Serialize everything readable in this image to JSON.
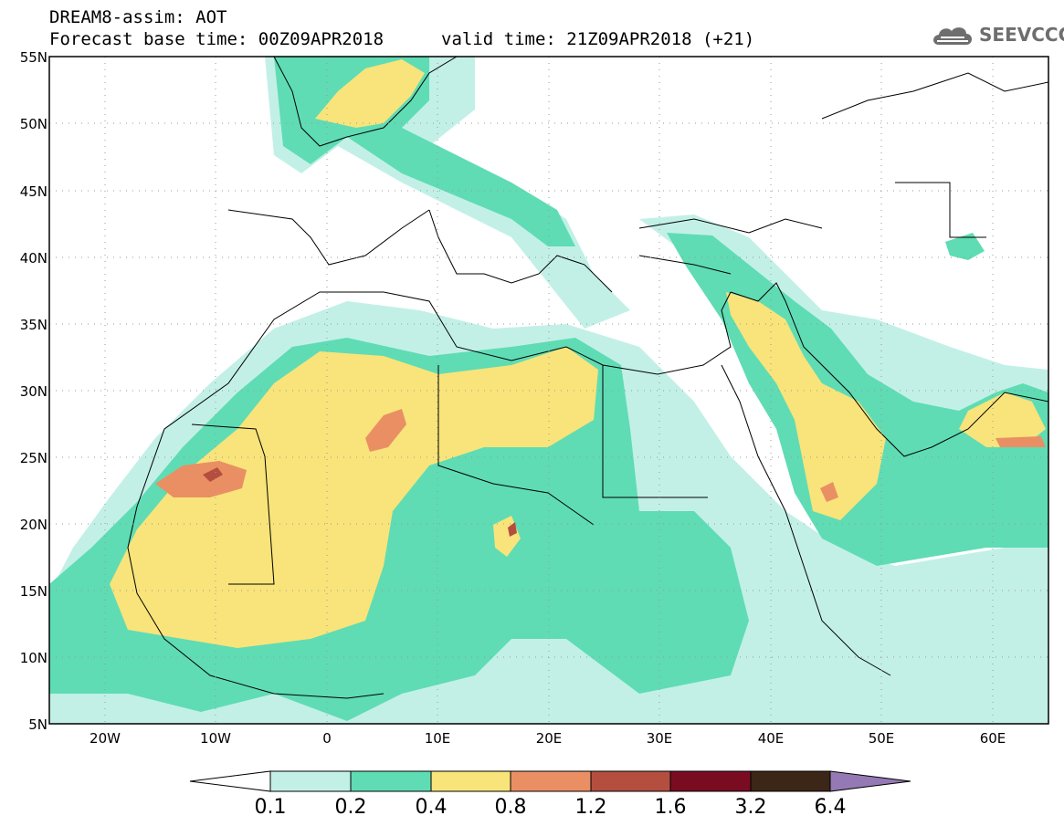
{
  "header": {
    "title": "DREAM8-assim: AOT",
    "base_time": "Forecast base time: 00Z09APR2018",
    "valid_time": "valid time: 21Z09APR2018 (+21)",
    "logo_text": "SEEVCCC"
  },
  "axes": {
    "lat_labels": [
      "55N",
      "50N",
      "45N",
      "40N",
      "35N",
      "30N",
      "25N",
      "20N",
      "15N",
      "10N",
      "5N"
    ],
    "lon_labels": [
      "20W",
      "10W",
      "0",
      "10E",
      "20E",
      "30E",
      "40E",
      "50E",
      "60E"
    ]
  },
  "colorbar": {
    "labels": [
      "0.1",
      "0.2",
      "0.4",
      "0.8",
      "1.2",
      "1.6",
      "3.2",
      "6.4"
    ],
    "colors": [
      "#ffffff",
      "#c2f0e7",
      "#5fdcb4",
      "#f8e47a",
      "#ea8f64",
      "#b44e3f",
      "#7a0c22",
      "#3b2618",
      "#9579b4"
    ]
  },
  "colors": {
    "c1": "#c2f0e7",
    "c2": "#5fdcb4",
    "c3": "#f8e47a",
    "c4": "#ea8f64",
    "c5": "#b44e3f"
  }
}
